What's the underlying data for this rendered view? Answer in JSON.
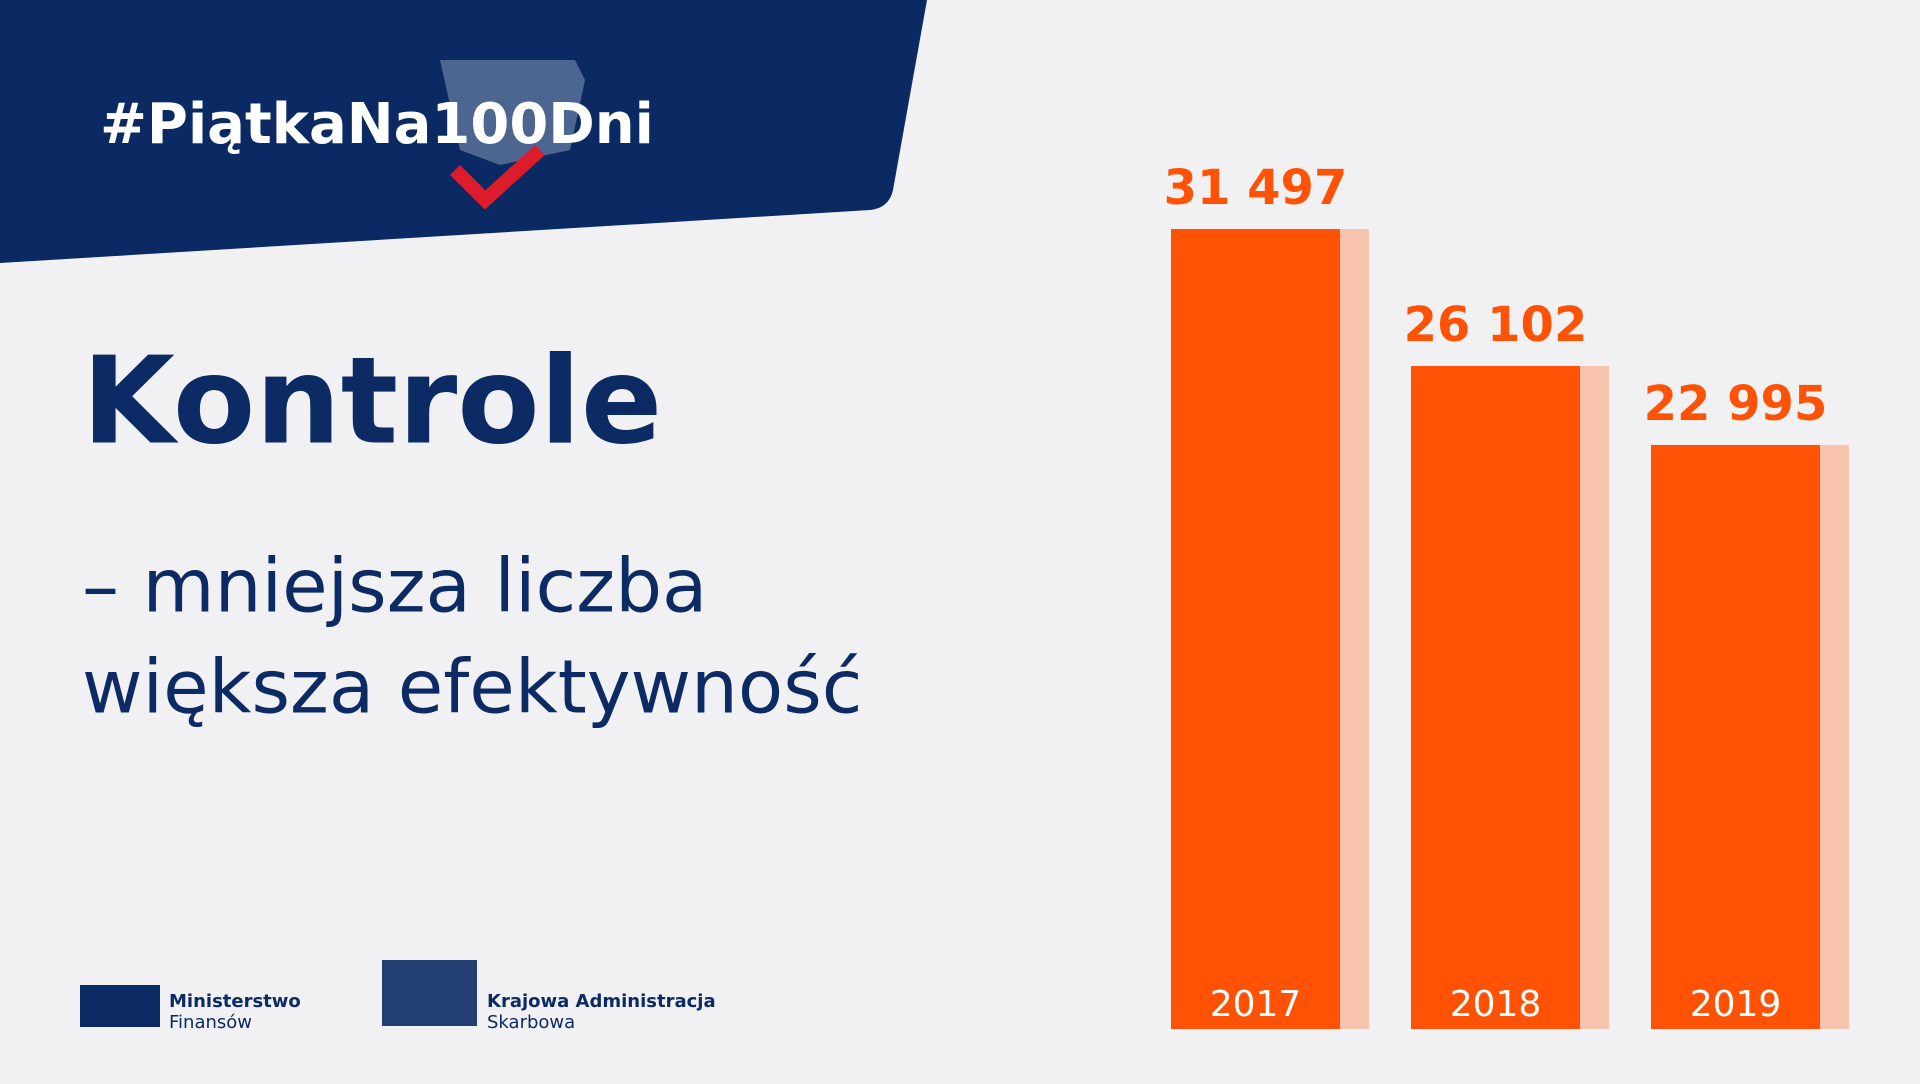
{
  "header": {
    "hashtag": "#PiątkaNa100Dni"
  },
  "logos": [
    [
      "Ministerstwo",
      "Finansów"
    ],
    [
      "Krajowa Administracja",
      "Skarbowa"
    ]
  ],
  "chart_data": {
    "type": "bar",
    "title": "Kontrole",
    "subtitle": [
      "– mniejsza liczba",
      "większa efektywność"
    ],
    "categories": [
      "2017",
      "2018",
      "2019"
    ],
    "values": [
      31497,
      26102,
      22995
    ],
    "value_labels": [
      "31 497",
      "26 102",
      "22 995"
    ],
    "color": "#ff5204"
  }
}
